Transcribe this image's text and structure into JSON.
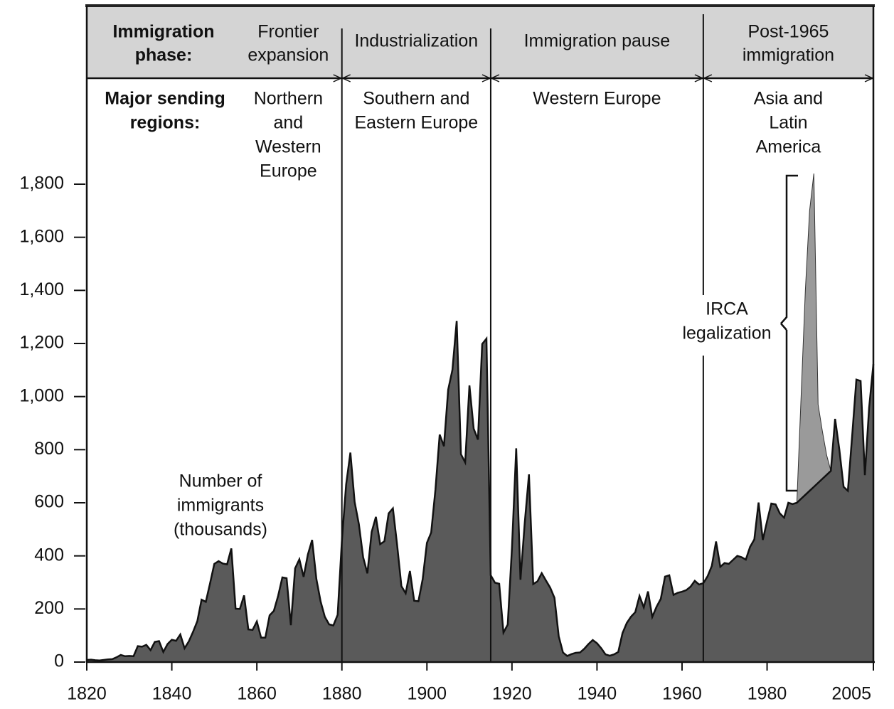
{
  "chart_data": {
    "type": "area",
    "header": {
      "phase_label": [
        "Immigration",
        "phase:"
      ],
      "region_label": [
        "Major sending",
        "regions:"
      ],
      "phases": [
        {
          "lines": [
            "Frontier",
            "expansion"
          ],
          "regions": [
            "Northern",
            "and",
            "Western",
            "Europe"
          ],
          "start": 1820,
          "end": 1880
        },
        {
          "lines": [
            "Industrialization"
          ],
          "regions": [
            "Southern and",
            "Eastern Europe"
          ],
          "start": 1880,
          "end": 1915
        },
        {
          "lines": [
            "Immigration pause"
          ],
          "regions": [
            "Western Europe"
          ],
          "start": 1915,
          "end": 1965
        },
        {
          "lines": [
            "Post-1965",
            "immigration"
          ],
          "regions": [
            "Asia and",
            "Latin",
            "America"
          ],
          "start": 1965,
          "end": 2005
        }
      ]
    },
    "x": [
      1820,
      1821,
      1822,
      1823,
      1824,
      1825,
      1826,
      1827,
      1828,
      1829,
      1830,
      1831,
      1832,
      1833,
      1834,
      1835,
      1836,
      1837,
      1838,
      1839,
      1840,
      1841,
      1842,
      1843,
      1844,
      1845,
      1846,
      1847,
      1848,
      1849,
      1850,
      1851,
      1852,
      1853,
      1854,
      1855,
      1856,
      1857,
      1858,
      1859,
      1860,
      1861,
      1862,
      1863,
      1864,
      1865,
      1866,
      1867,
      1868,
      1869,
      1870,
      1871,
      1872,
      1873,
      1874,
      1875,
      1876,
      1877,
      1878,
      1879,
      1880,
      1881,
      1882,
      1883,
      1884,
      1885,
      1886,
      1887,
      1888,
      1889,
      1890,
      1891,
      1892,
      1893,
      1894,
      1895,
      1896,
      1897,
      1898,
      1899,
      1900,
      1901,
      1902,
      1903,
      1904,
      1905,
      1906,
      1907,
      1908,
      1909,
      1910,
      1911,
      1912,
      1913,
      1914,
      1915,
      1916,
      1917,
      1918,
      1919,
      1920,
      1921,
      1922,
      1923,
      1924,
      1925,
      1926,
      1927,
      1928,
      1929,
      1930,
      1931,
      1932,
      1933,
      1934,
      1935,
      1936,
      1937,
      1938,
      1939,
      1940,
      1941,
      1942,
      1943,
      1944,
      1945,
      1946,
      1947,
      1948,
      1949,
      1950,
      1951,
      1952,
      1953,
      1954,
      1955,
      1956,
      1957,
      1958,
      1959,
      1960,
      1961,
      1962,
      1963,
      1964,
      1965,
      1966,
      1967,
      1968,
      1969,
      1970,
      1971,
      1972,
      1973,
      1974,
      1975,
      1976,
      1977,
      1978,
      1979,
      1980,
      1981,
      1982,
      1983,
      1984,
      1985,
      1986,
      1987,
      1988,
      1989,
      1990,
      1991,
      1992,
      1993,
      1994,
      1995,
      1996,
      1997,
      1998,
      1999,
      2000,
      2001,
      2002,
      2003,
      2004,
      2005
    ],
    "series": [
      {
        "name": [
          "Number of",
          "immigrants",
          "(thousands)"
        ],
        "color": "#5a5a5a",
        "values": [
          8,
          9,
          7,
          6,
          8,
          10,
          11,
          18,
          27,
          22,
          23,
          22,
          60,
          58,
          65,
          45,
          76,
          79,
          38,
          68,
          84,
          80,
          104,
          52,
          78,
          114,
          154,
          235,
          227,
          297,
          370,
          380,
          371,
          368,
          428,
          201,
          200,
          251,
          123,
          121,
          153,
          92,
          92,
          176,
          193,
          249,
          319,
          316,
          139,
          353,
          387,
          321,
          405,
          460,
          313,
          228,
          170,
          142,
          138,
          178,
          457,
          669,
          789,
          603,
          519,
          395,
          334,
          490,
          547,
          444,
          455,
          560,
          579,
          440,
          286,
          259,
          343,
          231,
          229,
          312,
          449,
          488,
          649,
          857,
          813,
          1026,
          1101,
          1285,
          783,
          752,
          1042,
          879,
          838,
          1198,
          1218,
          327,
          299,
          295,
          111,
          141,
          430,
          805,
          310,
          523,
          707,
          294,
          304,
          335,
          307,
          280,
          242,
          97,
          36,
          23,
          30,
          35,
          36,
          50,
          68,
          83,
          71,
          52,
          29,
          24,
          29,
          38,
          109,
          147,
          171,
          188,
          249,
          206,
          266,
          170,
          208,
          238,
          322,
          327,
          253,
          261,
          265,
          271,
          284,
          306,
          292,
          297,
          323,
          362,
          454,
          359,
          373,
          370,
          385,
          400,
          395,
          386,
          434,
          462,
          601,
          460,
          531,
          597,
          594,
          560,
          544,
          600,
          595,
          600,
          615,
          630,
          645,
          660,
          675,
          690,
          705,
          720,
          916,
          800,
          660,
          645,
          850,
          1064,
          1059,
          704,
          958,
          1122
        ]
      },
      {
        "name": [
          "IRCA",
          "legalization"
        ],
        "color": "#9a9a9a",
        "values": [
          null,
          null,
          null,
          null,
          null,
          null,
          null,
          null,
          null,
          null,
          null,
          null,
          null,
          null,
          null,
          null,
          null,
          null,
          null,
          null,
          null,
          null,
          null,
          null,
          null,
          null,
          null,
          null,
          null,
          null,
          null,
          null,
          null,
          null,
          null,
          null,
          null,
          null,
          null,
          null,
          null,
          null,
          null,
          null,
          null,
          null,
          null,
          null,
          null,
          null,
          null,
          null,
          null,
          null,
          null,
          null,
          null,
          null,
          null,
          null,
          null,
          null,
          null,
          null,
          null,
          null,
          null,
          null,
          null,
          null,
          null,
          null,
          null,
          null,
          null,
          null,
          null,
          null,
          null,
          null,
          null,
          null,
          null,
          null,
          null,
          null,
          null,
          null,
          null,
          null,
          null,
          null,
          null,
          null,
          null,
          null,
          null,
          null,
          null,
          null,
          null,
          null,
          null,
          null,
          null,
          null,
          null,
          null,
          null,
          null,
          null,
          null,
          null,
          null,
          null,
          null,
          null,
          null,
          null,
          null,
          null,
          null,
          null,
          null,
          null,
          null,
          null,
          null,
          null,
          null,
          null,
          null,
          null,
          null,
          null,
          null,
          null,
          null,
          null,
          null,
          null,
          null,
          null,
          null,
          null,
          null,
          null,
          null,
          null,
          null,
          null,
          null,
          null,
          null,
          null,
          null,
          null,
          null,
          null,
          null,
          null,
          null,
          null,
          null,
          null,
          null,
          null,
          600,
          1000,
          1400,
          1700,
          1840,
          970,
          870,
          780,
          720,
          null,
          null,
          null,
          null,
          null,
          null,
          null,
          null,
          null,
          null
        ]
      }
    ],
    "xlim": [
      1820,
      2005
    ],
    "xticks": [
      1820,
      1840,
      1860,
      1880,
      1900,
      1920,
      1940,
      1960,
      1980,
      2005
    ],
    "ylim": [
      0,
      1800
    ],
    "yticks": [
      0,
      200,
      400,
      600,
      800,
      {
        "value": 1000,
        "label": "1,000"
      },
      {
        "value": 1200,
        "label": "1,200"
      },
      {
        "value": 1400,
        "label": "1,400"
      },
      {
        "value": 1600,
        "label": "1,600"
      },
      {
        "value": 1800,
        "label": "1,800"
      }
    ]
  }
}
